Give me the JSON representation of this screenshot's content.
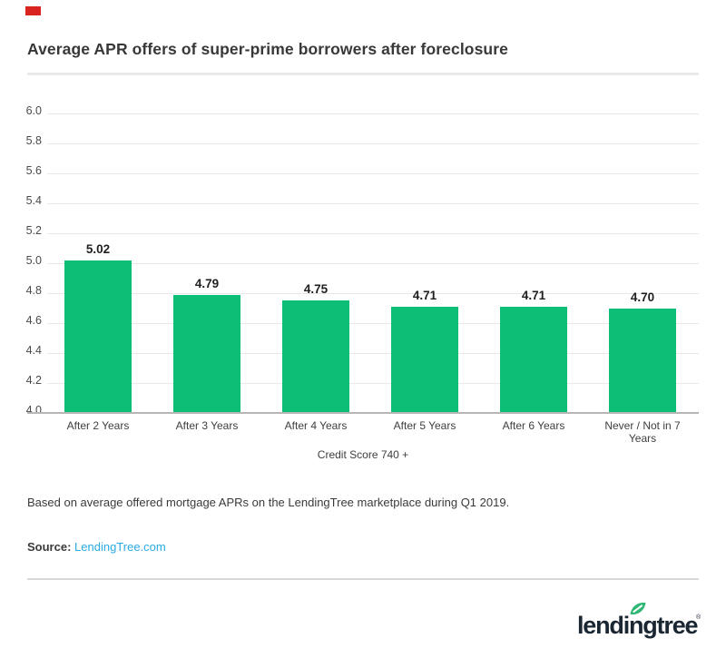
{
  "page": {
    "background": "#ffffff",
    "red_mark_color": "#d9231f"
  },
  "header": {
    "title": "Average APR offers of super-prime borrowers after foreclosure"
  },
  "chart_data": {
    "type": "bar",
    "title": "Average APR offers of super-prime borrowers after foreclosure",
    "categories": [
      "After 2 Years",
      "After 3 Years",
      "After 4 Years",
      "After 5 Years",
      "After 6 Years",
      "Never / Not in 7 Years"
    ],
    "values": [
      5.02,
      4.79,
      4.75,
      4.71,
      4.71,
      4.7
    ],
    "value_labels": [
      "5.02",
      "4.79",
      "4.75",
      "4.71",
      "4.71",
      "4.70"
    ],
    "xlabel": "Credit Score 740 +",
    "ylabel": "",
    "ylim": [
      4.0,
      6.0
    ],
    "ytick_step": 0.2,
    "ytick_labels": [
      "4.0",
      "4.2",
      "4.4",
      "4.6",
      "4.8",
      "5.0",
      "5.2",
      "5.4",
      "5.6",
      "5.8",
      "6.0"
    ],
    "grid": true,
    "legend": "none",
    "bar_color": "#0cbe76",
    "gridline_color": "#e8e8e8",
    "axis_line_color": "#b6b6b6"
  },
  "footnote": {
    "text": "Based on average offered mortgage APRs on the LendingTree marketplace during Q1 2019."
  },
  "source": {
    "label": "Source:",
    "link_text": "LendingTree.com",
    "link_color": "#29abe2"
  },
  "branding": {
    "logo_text": "lendingtree",
    "registered_mark": "®",
    "logo_color": "#1b2633",
    "leaf_color": "#2eb873"
  }
}
